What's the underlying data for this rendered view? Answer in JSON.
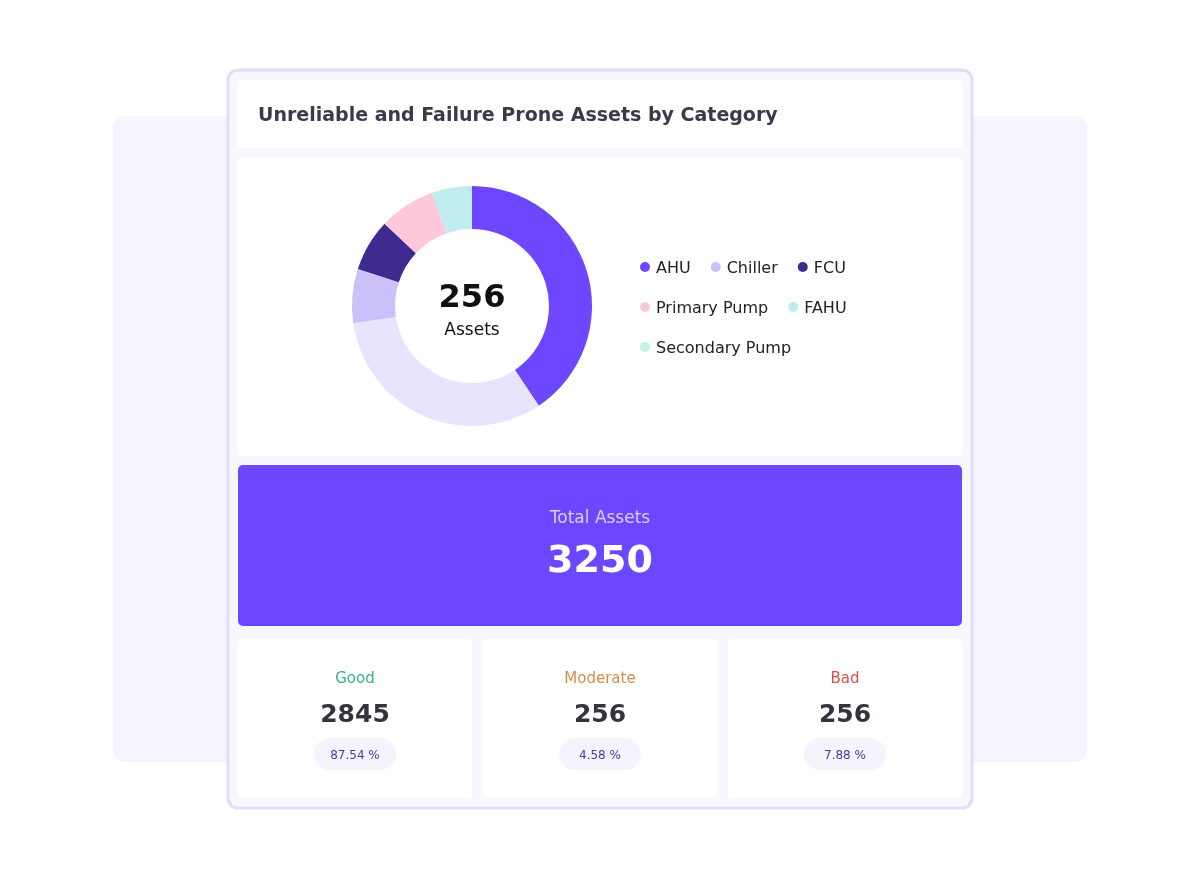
{
  "chart_data": [
    {
      "type": "donut",
      "title": "Unreliable and Failure Prone Assets by Category",
      "categories": [
        "AHU",
        null,
        "Chiller",
        "FCU",
        "Primary Pump",
        "FAHU",
        "Secondary Pump"
      ],
      "values": [
        40.6,
        32.1,
        7.3,
        7.0,
        7.6,
        5.4,
        0
      ],
      "colors": [
        "#6c47ff",
        "#e9e4fd",
        "#cbc0fa",
        "#3f2a8f",
        "#fbc9da",
        "#bfecee",
        "#c3efe5"
      ],
      "legend": "right",
      "annotations": [
        "256",
        "Assets"
      ]
    },
    {
      "type": "other",
      "annotations": [
        "Total Assets",
        "3250",
        "Good",
        "2845",
        "87.54 %",
        "Moderate",
        "256",
        "4.58 %",
        "Bad",
        "256",
        "7.88 %"
      ]
    }
  ]
}
